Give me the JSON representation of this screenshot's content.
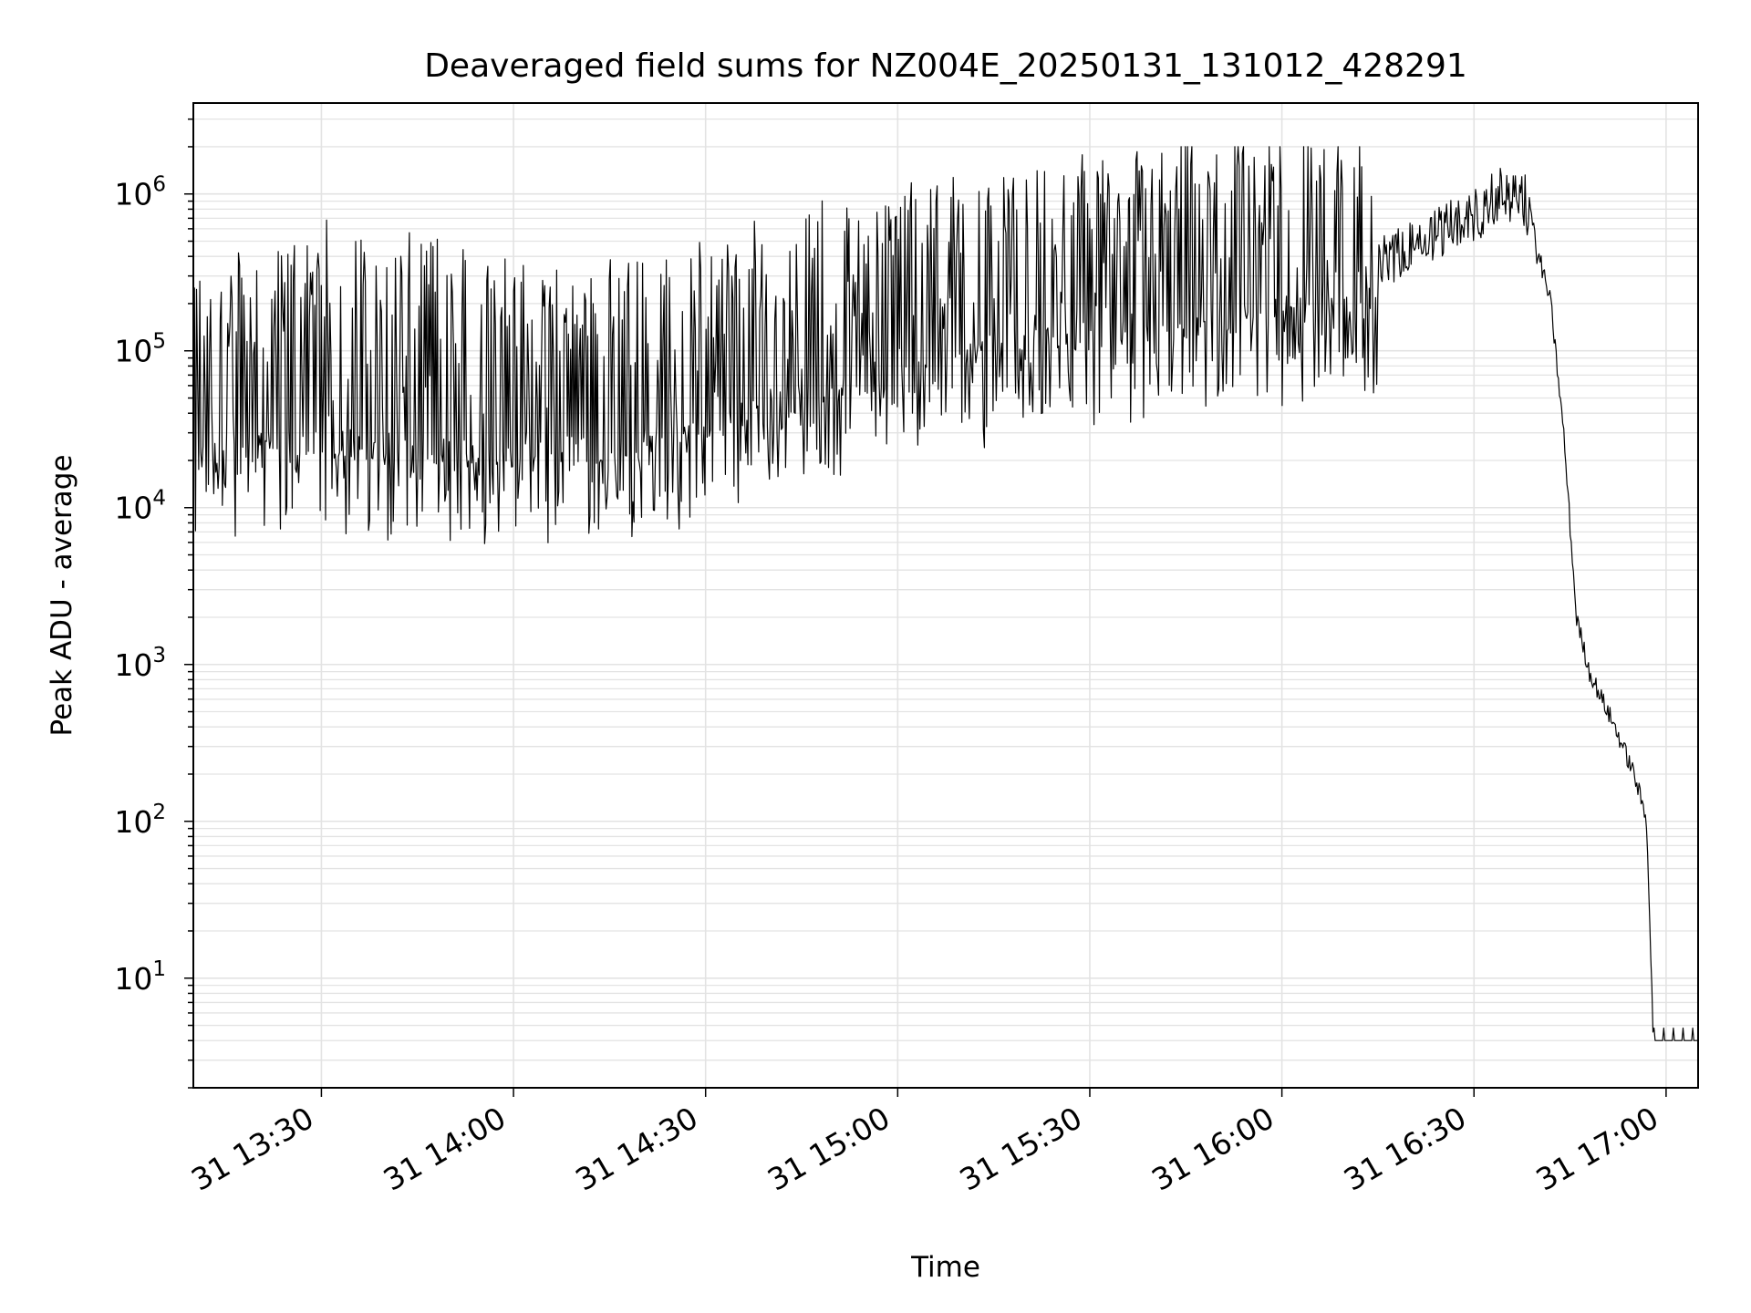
{
  "chart_data": {
    "type": "line",
    "title": "Deaveraged field sums for NZ004E_20250131_131012_428291",
    "xlabel": "Time",
    "ylabel": "Peak ADU - average",
    "yscale": "log",
    "ylim": [
      2,
      3800000.0
    ],
    "xlim": [
      "2025-01-31 13:10",
      "2025-01-31 17:05"
    ],
    "x_ticks": [
      "31 13:30",
      "31 14:00",
      "31 14:30",
      "31 15:00",
      "31 15:30",
      "31 16:00",
      "31 16:30",
      "31 17:00"
    ],
    "y_ticks": [
      "10^1",
      "10^2",
      "10^3",
      "10^4",
      "10^5",
      "10^6"
    ],
    "grid": true,
    "line_color": "#000000",
    "series": [
      {
        "x": [
          "13:10",
          "13:30",
          "13:40",
          "14:00",
          "14:20",
          "14:30",
          "14:45",
          "15:00",
          "15:15",
          "15:30",
          "15:45",
          "16:00",
          "16:15",
          "16:25",
          "16:30",
          "16:34",
          "16:38",
          "16:42",
          "16:44",
          "16:46",
          "16:48",
          "16:52",
          "16:55",
          "16:57",
          "16:58",
          "17:05"
        ],
        "y": [
          35000,
          50000,
          40000,
          40000,
          45000,
          60000,
          90000,
          140000,
          180000,
          220000,
          260000,
          320000,
          350000,
          600000,
          700000,
          1000000,
          900000,
          200000,
          30000,
          2000,
          900,
          400,
          200,
          100,
          4,
          4
        ]
      }
    ]
  }
}
